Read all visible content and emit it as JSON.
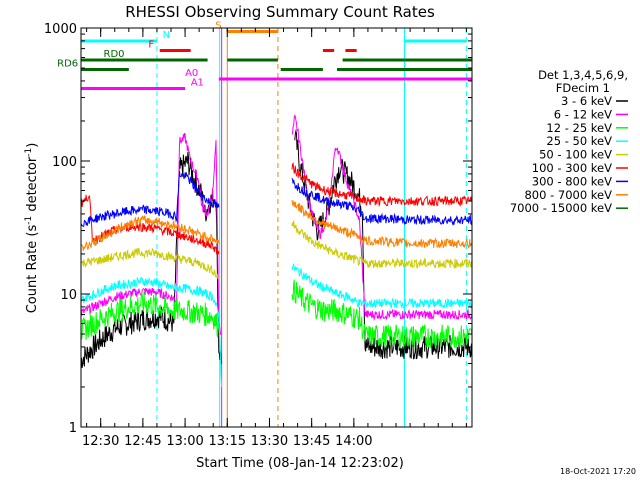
{
  "chart_data": {
    "type": "line",
    "title": "RHESSI Observing Summary Count Rates",
    "xlabel": "Start Time (08-Jan-14 12:23:02)",
    "ylabel": "Count Rate (s⁻¹ detector⁻¹)",
    "ylabel_parts": {
      "base": "Count Rate (s",
      "sup1": "-1",
      "mid": " detector",
      "sup2": "-1",
      "end": ")"
    },
    "y_scale": "log",
    "ylim": [
      1,
      1000
    ],
    "y_ticks": [
      1,
      10,
      100,
      1000
    ],
    "y_tick_labels": [
      "1",
      "10",
      "100",
      "1000"
    ],
    "x_range_min": [
      23.0,
      162.0
    ],
    "x_ticks_min": [
      30,
      45,
      60,
      75,
      90,
      105,
      120
    ],
    "x_tick_labels": [
      "12:30",
      "12:45",
      "13:00",
      "13:15",
      "13:30",
      "13:45",
      "14:00"
    ],
    "legend_title": [
      "Det 1,3,4,5,6,9,",
      "FDecim 1"
    ],
    "series": [
      {
        "name": "3 - 6 keV",
        "color": "#000000",
        "points": [
          [
            23,
            3.2
          ],
          [
            30,
            4.5
          ],
          [
            35,
            5.5
          ],
          [
            40,
            6
          ],
          [
            45,
            6.5
          ],
          [
            50,
            6.8
          ],
          [
            52,
            6.7
          ],
          [
            56,
            6.0
          ],
          [
            58,
            85
          ],
          [
            61,
            100
          ],
          [
            63,
            75
          ],
          [
            66,
            55
          ],
          [
            67,
            40
          ],
          [
            69,
            50
          ],
          [
            71,
            55
          ],
          [
            72,
            4
          ],
          [
            73,
            3
          ],
          null,
          [
            99,
            160
          ],
          [
            101,
            90
          ],
          [
            103,
            60
          ],
          [
            105,
            40
          ],
          [
            107,
            30
          ],
          [
            109,
            35
          ],
          [
            111,
            45
          ],
          [
            113,
            70
          ],
          [
            115,
            90
          ],
          [
            117,
            80
          ],
          [
            119,
            70
          ],
          [
            121,
            60
          ],
          [
            123,
            45
          ],
          [
            124,
            4
          ],
          [
            130,
            4
          ],
          [
            140,
            4
          ],
          [
            150,
            4
          ],
          [
            162,
            4
          ]
        ]
      },
      {
        "name": "6 - 12 keV",
        "color": "#ff00ff",
        "points": [
          [
            23,
            7.2
          ],
          [
            30,
            8.5
          ],
          [
            35,
            9.5
          ],
          [
            40,
            10
          ],
          [
            45,
            10.5
          ],
          [
            50,
            10.3
          ],
          [
            55,
            9.5
          ],
          [
            57,
            9
          ],
          [
            58,
            140
          ],
          [
            60,
            150
          ],
          [
            62,
            100
          ],
          [
            65,
            70
          ],
          [
            66,
            45
          ],
          [
            68,
            40
          ],
          [
            70,
            60
          ],
          [
            71,
            150
          ],
          [
            72,
            6
          ],
          [
            73,
            5
          ],
          null,
          [
            98,
            150
          ],
          [
            99,
            210
          ],
          [
            100,
            170
          ],
          [
            102,
            90
          ],
          [
            104,
            50
          ],
          [
            106,
            35
          ],
          [
            108,
            28
          ],
          [
            110,
            35
          ],
          [
            112,
            65
          ],
          [
            113,
            110
          ],
          [
            114,
            130
          ],
          [
            116,
            90
          ],
          [
            118,
            65
          ],
          [
            120,
            50
          ],
          [
            122,
            35
          ],
          [
            124,
            7
          ],
          [
            130,
            7
          ],
          [
            140,
            7
          ],
          [
            150,
            7
          ],
          [
            162,
            7
          ]
        ]
      },
      {
        "name": "12 - 25 keV",
        "color": "#00ff00",
        "points": [
          [
            23,
            5.2
          ],
          [
            30,
            6.5
          ],
          [
            35,
            7.3
          ],
          [
            40,
            8
          ],
          [
            45,
            8.5
          ],
          [
            50,
            8.2
          ],
          [
            55,
            7.5
          ],
          [
            60,
            7.5
          ],
          [
            65,
            7.2
          ],
          [
            70,
            6.8
          ],
          [
            72,
            5.5
          ],
          null,
          [
            98,
            11
          ],
          [
            102,
            9
          ],
          [
            106,
            8
          ],
          [
            110,
            7.5
          ],
          [
            114,
            7.5
          ],
          [
            118,
            7
          ],
          [
            122,
            6.5
          ],
          [
            124,
            4.8
          ],
          [
            130,
            4.8
          ],
          [
            140,
            4.8
          ],
          [
            150,
            4.8
          ],
          [
            162,
            4.8
          ]
        ]
      },
      {
        "name": "25 - 50 keV",
        "color": "#00ffff",
        "points": [
          [
            23,
            9
          ],
          [
            30,
            10.5
          ],
          [
            35,
            11.5
          ],
          [
            40,
            12
          ],
          [
            45,
            12.5
          ],
          [
            50,
            12.2
          ],
          [
            55,
            11.2
          ],
          [
            60,
            11
          ],
          [
            65,
            10.5
          ],
          [
            70,
            9.5
          ],
          [
            72,
            7
          ],
          [
            73,
            2
          ],
          null,
          [
            98,
            16
          ],
          [
            102,
            14
          ],
          [
            106,
            12
          ],
          [
            110,
            11
          ],
          [
            114,
            10
          ],
          [
            118,
            9.5
          ],
          [
            122,
            8.5
          ],
          [
            124,
            8.5
          ],
          [
            130,
            8.5
          ],
          [
            140,
            8.5
          ],
          [
            150,
            8.5
          ],
          [
            162,
            8.5
          ]
        ]
      },
      {
        "name": "50 - 100 keV",
        "color": "#cccc00",
        "points": [
          [
            23,
            17
          ],
          [
            30,
            18
          ],
          [
            35,
            19
          ],
          [
            40,
            20
          ],
          [
            45,
            20.5
          ],
          [
            50,
            20.2
          ],
          [
            55,
            19
          ],
          [
            60,
            18
          ],
          [
            65,
            17
          ],
          [
            70,
            15
          ],
          [
            72,
            13
          ],
          null,
          [
            98,
            34
          ],
          [
            102,
            28
          ],
          [
            106,
            24
          ],
          [
            110,
            22
          ],
          [
            114,
            20
          ],
          [
            118,
            19
          ],
          [
            122,
            17.5
          ],
          [
            124,
            17
          ],
          [
            130,
            17
          ],
          [
            140,
            17
          ],
          [
            150,
            17
          ],
          [
            162,
            17
          ]
        ]
      },
      {
        "name": "100 - 300 keV",
        "color": "#ff0000",
        "points": [
          [
            23,
            48
          ],
          [
            25,
            52
          ],
          [
            26,
            58
          ],
          [
            27,
            25
          ],
          [
            30,
            27
          ],
          [
            35,
            30
          ],
          [
            40,
            32
          ],
          [
            45,
            32
          ],
          [
            50,
            31
          ],
          [
            55,
            29
          ],
          [
            60,
            27
          ],
          [
            65,
            25
          ],
          [
            70,
            23
          ],
          [
            72,
            20
          ],
          null,
          [
            98,
            90
          ],
          [
            102,
            75
          ],
          [
            106,
            65
          ],
          [
            110,
            60
          ],
          [
            114,
            57
          ],
          [
            118,
            55
          ],
          [
            122,
            52
          ],
          [
            124,
            50
          ],
          [
            130,
            50
          ],
          [
            140,
            50
          ],
          [
            150,
            50
          ],
          [
            162,
            50
          ]
        ]
      },
      {
        "name": "300 - 800 keV",
        "color": "#0000ff",
        "points": [
          [
            23,
            34
          ],
          [
            30,
            38
          ],
          [
            35,
            40
          ],
          [
            40,
            42
          ],
          [
            45,
            43
          ],
          [
            50,
            42
          ],
          [
            55,
            40
          ],
          [
            57,
            38
          ],
          [
            58,
            80
          ],
          [
            61,
            75
          ],
          [
            63,
            65
          ],
          [
            66,
            55
          ],
          [
            68,
            50
          ],
          [
            70,
            48
          ],
          [
            72,
            45
          ],
          null,
          [
            98,
            70
          ],
          [
            102,
            60
          ],
          [
            106,
            55
          ],
          [
            110,
            50
          ],
          [
            114,
            48
          ],
          [
            118,
            46
          ],
          [
            122,
            42
          ],
          [
            124,
            37
          ],
          [
            130,
            37
          ],
          [
            140,
            36
          ],
          [
            150,
            36
          ],
          [
            162,
            36
          ]
        ]
      },
      {
        "name": "800 - 7000 keV",
        "color": "#ff8000",
        "points": [
          [
            23,
            22
          ],
          [
            30,
            26
          ],
          [
            35,
            30
          ],
          [
            40,
            34
          ],
          [
            45,
            36
          ],
          [
            50,
            35
          ],
          [
            55,
            33
          ],
          [
            60,
            31
          ],
          [
            65,
            28
          ],
          [
            70,
            26
          ],
          [
            72,
            24
          ],
          null,
          [
            98,
            50
          ],
          [
            102,
            42
          ],
          [
            106,
            37
          ],
          [
            110,
            33
          ],
          [
            114,
            31
          ],
          [
            118,
            29
          ],
          [
            122,
            27
          ],
          [
            124,
            25
          ],
          [
            130,
            25
          ],
          [
            140,
            24
          ],
          [
            150,
            24
          ],
          [
            162,
            24
          ]
        ]
      },
      {
        "name": "7000 - 15000 keV",
        "color": "#006600",
        "points": []
      }
    ],
    "markers": [
      {
        "type": "vline",
        "x": 23.0,
        "color": "#00ffff",
        "style": "solid"
      },
      {
        "type": "vline",
        "x": 50.0,
        "color": "#00ffff",
        "style": "dash"
      },
      {
        "type": "vline",
        "x": 72.3,
        "color": "#00ffff",
        "style": "solid"
      },
      {
        "type": "vline",
        "x": 73.0,
        "color": "#ff00ff",
        "style": "solid"
      },
      {
        "type": "vline",
        "x": 75.0,
        "color": "#ff8000",
        "style": "solid"
      },
      {
        "type": "vline",
        "x": 93.0,
        "color": "#ff8000",
        "style": "dash"
      },
      {
        "type": "vline",
        "x": 138.0,
        "color": "#00ffff",
        "style": "solid"
      },
      {
        "type": "vline",
        "x": 160.0,
        "color": "#00ffff",
        "style": "dash"
      }
    ],
    "flags": [
      {
        "label": "N",
        "color": "#00ffff",
        "y_row": 0,
        "segments": [
          [
            23,
            50
          ],
          [
            138,
            160
          ]
        ],
        "label_x": 52,
        "label_side": "after"
      },
      {
        "label": "S",
        "color": "#ff8000",
        "y_row": -1,
        "segments": [
          [
            75,
            93
          ]
        ],
        "label_x": 73,
        "label_side": "before"
      },
      {
        "label": "F",
        "color": "#ff0000",
        "y_row": 1,
        "segments": [
          [
            51,
            62
          ],
          [
            109,
            113
          ],
          [
            117,
            121
          ]
        ],
        "label_x": 49,
        "label_side": "before"
      },
      {
        "label": "RD0",
        "color": "#006600",
        "y_row": 2,
        "segments": [
          [
            23,
            68
          ],
          [
            75,
            93
          ],
          [
            116,
            162
          ]
        ],
        "label_x": 31,
        "label_side": "after"
      },
      {
        "label": "RD6",
        "color": "#006600",
        "y_row": 3,
        "segments": [
          [
            23,
            40
          ],
          [
            94,
            109
          ],
          [
            114,
            162
          ]
        ],
        "label_x": 22,
        "label_side": "before"
      },
      {
        "label": "A0",
        "color": "#ff00ff",
        "y_row": 4,
        "segments": [
          [
            72,
            162
          ]
        ],
        "label_x": 60,
        "label_side": "after"
      },
      {
        "label": "A1",
        "color": "#ff00ff",
        "y_row": 5,
        "segments": [
          [
            23,
            60
          ]
        ],
        "label_x": 62,
        "label_side": "after"
      }
    ]
  },
  "footer_stamp": "18-Oct-2021 17:20"
}
